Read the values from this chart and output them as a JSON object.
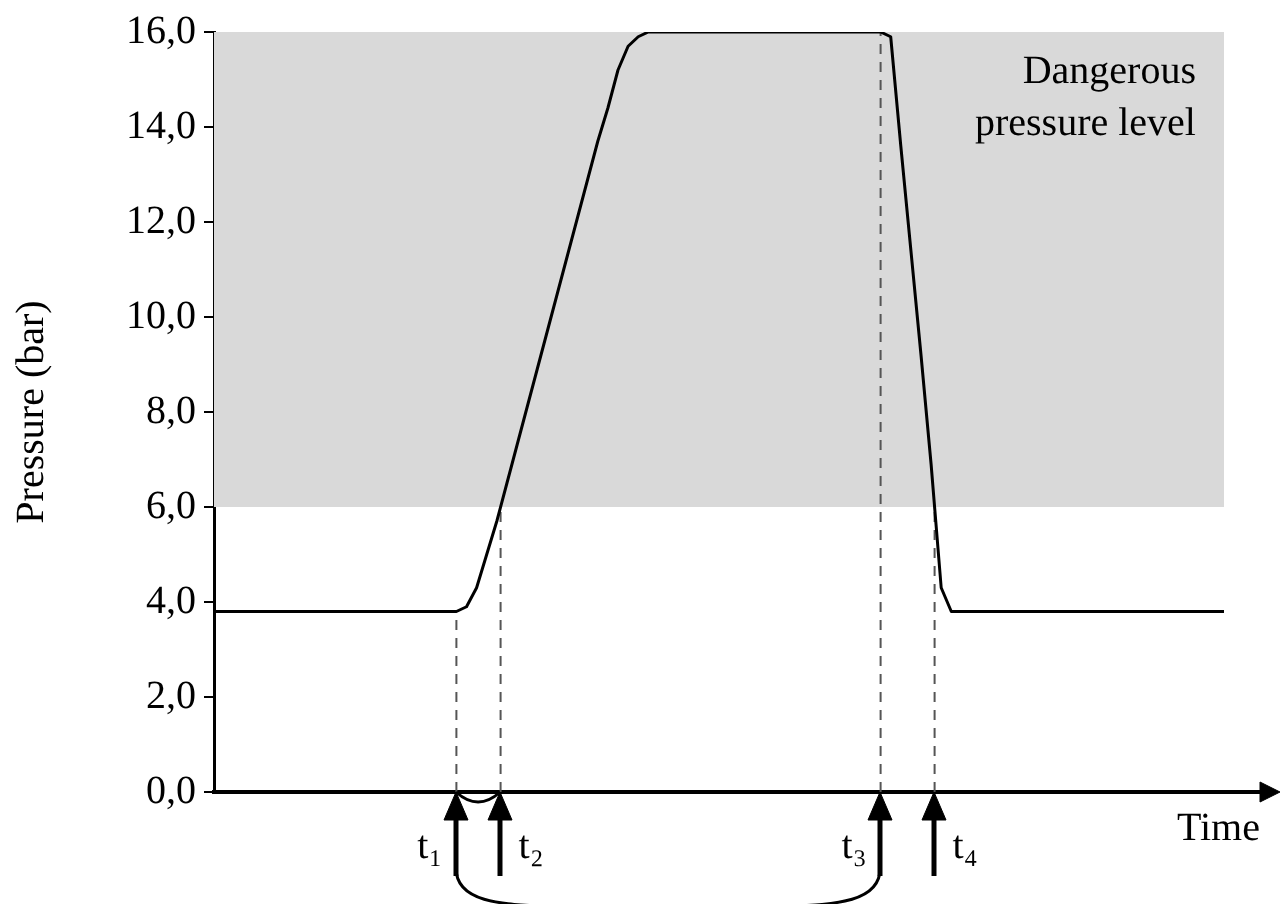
{
  "chart_data": {
    "type": "line",
    "ylabel": "Pressure (bar)",
    "xlabel": "Time",
    "tick_labels": "y",
    "grid": false,
    "legend": false,
    "marker": "none",
    "line_style": "solid",
    "ylim": [
      0,
      16
    ],
    "yticks": [
      {
        "value": 0,
        "label": "0,0"
      },
      {
        "value": 2,
        "label": "2,0"
      },
      {
        "value": 4,
        "label": "4,0"
      },
      {
        "value": 6,
        "label": "6,0"
      },
      {
        "value": 8,
        "label": "8,0"
      },
      {
        "value": 10,
        "label": "10,0"
      },
      {
        "value": 12,
        "label": "12,0"
      },
      {
        "value": 14,
        "label": "14,0"
      },
      {
        "value": 16,
        "label": "16,0"
      }
    ],
    "categories": [
      null,
      null,
      null,
      null,
      null,
      null,
      null,
      null,
      null,
      null,
      null,
      null,
      null,
      null,
      null,
      null,
      null,
      null,
      null,
      null,
      null,
      null,
      null,
      null,
      null,
      null,
      null,
      null,
      null,
      null,
      null,
      null,
      null,
      null,
      null,
      null,
      null,
      null,
      null,
      null,
      null,
      null,
      null,
      null,
      null,
      null,
      null,
      null,
      null,
      null,
      null,
      null,
      null,
      null,
      null,
      null,
      null,
      null,
      null,
      null,
      null,
      null,
      null,
      null,
      null,
      null,
      null,
      null,
      null,
      null,
      null,
      null,
      null,
      null,
      null,
      null,
      null,
      null,
      null,
      null,
      null,
      null,
      null,
      null,
      null,
      null,
      null,
      null,
      null,
      null,
      null,
      null,
      null,
      null,
      null,
      null,
      null,
      null,
      null,
      null,
      null
    ],
    "series": [
      {
        "color": "#000000",
        "values": [
          3.8,
          3.8,
          3.8,
          3.8,
          3.8,
          3.8,
          3.8,
          3.8,
          3.8,
          3.8,
          3.8,
          3.8,
          3.8,
          3.8,
          3.8,
          3.8,
          3.8,
          3.8,
          3.8,
          3.8,
          3.8,
          3.8,
          3.8,
          3.8,
          3.8,
          3.9,
          4.3,
          5.0,
          5.7,
          6.5,
          7.3,
          8.1,
          8.9,
          9.7,
          10.5,
          11.3,
          12.1,
          12.9,
          13.7,
          14.4,
          15.2,
          15.7,
          15.9,
          16,
          16,
          16,
          16,
          16,
          16,
          16,
          16,
          16,
          16,
          16,
          16,
          16,
          16,
          16,
          16,
          16,
          16,
          16,
          16,
          16,
          16,
          16,
          16,
          15.9,
          13.6,
          11.4,
          9.2,
          6.9,
          4.3,
          3.8,
          3.8,
          3.8,
          3.8,
          3.8,
          3.8,
          3.8,
          3.8,
          3.8,
          3.8,
          3.8,
          3.8,
          3.8,
          3.8,
          3.8,
          3.8,
          3.8,
          3.8,
          3.8,
          3.8,
          3.8,
          3.8,
          3.8,
          3.8,
          3.8,
          3.8,
          3.8,
          3.8
        ]
      }
    ],
    "bands": [
      {
        "axis": "y",
        "from": 6,
        "to": 16,
        "label": "Dangerous pressure level",
        "color": "#d9d9d9"
      }
    ],
    "annotations": [
      "t₁",
      "t₂",
      "t₃",
      "t₄"
    ]
  }
}
